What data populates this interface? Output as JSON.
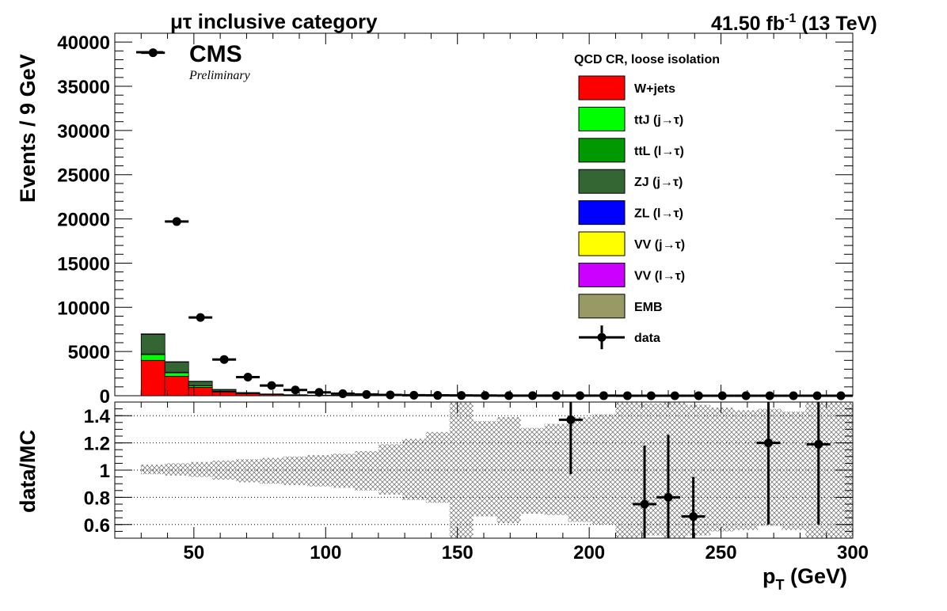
{
  "header": {
    "category_title": "μτ inclusive category",
    "lumi_value": "41.50 fb",
    "lumi_exponent": "-1",
    "energy": " (13 TeV)",
    "experiment": "CMS",
    "status": "Preliminary"
  },
  "chart_data": [
    {
      "type": "bar",
      "role": "stacked histogram with data points",
      "ylabel": "Events / 9 GeV",
      "ylim": [
        0,
        41000
      ],
      "yticks": [
        0,
        5000,
        10000,
        15000,
        20000,
        25000,
        30000,
        35000,
        40000
      ],
      "xlim": [
        20,
        300
      ],
      "legend_title": "QCD CR, loose isolation",
      "legend_position": "top-right",
      "bin_edges": [
        30,
        39,
        48,
        57,
        66,
        75,
        84,
        93,
        102,
        111,
        120,
        129,
        138,
        147,
        156,
        165,
        174,
        183,
        192,
        201,
        210,
        219,
        228,
        237,
        246,
        255,
        264,
        273,
        282,
        291,
        300
      ],
      "series": [
        {
          "name": "W+jets",
          "color": "#ff0000",
          "values": [
            4000,
            2200,
            950,
            430,
            230,
            130,
            70,
            40,
            25,
            15,
            10,
            6,
            4,
            3,
            2,
            1,
            1,
            1,
            1,
            0,
            0,
            0,
            0,
            0,
            0,
            0,
            0,
            0,
            0,
            0
          ]
        },
        {
          "name": "ttJ (j→τ)",
          "color": "#00ff00",
          "values": [
            650,
            400,
            160,
            60,
            25,
            12,
            6,
            3,
            2,
            1,
            1,
            0,
            0,
            0,
            0,
            0,
            0,
            0,
            0,
            0,
            0,
            0,
            0,
            0,
            0,
            0,
            0,
            0,
            0,
            0
          ]
        },
        {
          "name": "ttL (l→τ)",
          "color": "#009900",
          "values": [
            80,
            60,
            30,
            15,
            8,
            5,
            3,
            2,
            1,
            1,
            0,
            0,
            0,
            0,
            0,
            0,
            0,
            0,
            0,
            0,
            0,
            0,
            0,
            0,
            0,
            0,
            0,
            0,
            0,
            0
          ]
        },
        {
          "name": "ZJ (j→τ)",
          "color": "#336633",
          "values": [
            2200,
            1150,
            480,
            190,
            90,
            45,
            25,
            12,
            7,
            4,
            2,
            1,
            1,
            0,
            0,
            0,
            0,
            0,
            0,
            0,
            0,
            0,
            0,
            0,
            0,
            0,
            0,
            0,
            0,
            0
          ]
        },
        {
          "name": "ZL (l→τ)",
          "color": "#0000ff",
          "values": [
            0,
            0,
            0,
            0,
            0,
            0,
            0,
            0,
            0,
            0,
            0,
            0,
            0,
            0,
            0,
            0,
            0,
            0,
            0,
            0,
            0,
            0,
            0,
            0,
            0,
            0,
            0,
            0,
            0,
            0
          ]
        },
        {
          "name": "VV (j→τ)",
          "color": "#ffff00",
          "values": [
            20,
            12,
            5,
            3,
            2,
            1,
            1,
            0,
            0,
            0,
            0,
            0,
            0,
            0,
            0,
            0,
            0,
            0,
            0,
            0,
            0,
            0,
            0,
            0,
            0,
            0,
            0,
            0,
            0,
            0
          ]
        },
        {
          "name": "VV (l→τ)",
          "color": "#cc00ff",
          "values": [
            0,
            0,
            0,
            0,
            0,
            0,
            0,
            0,
            0,
            0,
            0,
            0,
            0,
            0,
            0,
            0,
            0,
            0,
            0,
            0,
            0,
            0,
            0,
            0,
            0,
            0,
            0,
            0,
            0,
            0
          ]
        },
        {
          "name": "EMB",
          "color": "#999966",
          "values": [
            50,
            28,
            15,
            8,
            5,
            3,
            2,
            1,
            1,
            0,
            0,
            0,
            0,
            0,
            0,
            0,
            0,
            0,
            0,
            0,
            0,
            0,
            0,
            0,
            0,
            0,
            0,
            0,
            0,
            0
          ]
        }
      ],
      "data_points": {
        "name": "data",
        "x": [
          34.5,
          43.5,
          52.5,
          61.5,
          70.5,
          79.5,
          88.5,
          97.5,
          106.5,
          115.5,
          124.5,
          133.5,
          142.5,
          151.5,
          160.5,
          169.5,
          178.5,
          187.5,
          196.5,
          205.5,
          214.5,
          223.5,
          232.5,
          241.5,
          250.5,
          259.5,
          268.5,
          277.5,
          286.5,
          295.5
        ],
        "y": [
          38800,
          19700,
          8850,
          4100,
          2100,
          1150,
          650,
          380,
          230,
          140,
          95,
          60,
          40,
          28,
          20,
          15,
          12,
          10,
          8,
          6,
          5,
          4,
          3,
          3,
          2,
          2,
          2,
          1,
          1,
          1
        ]
      }
    },
    {
      "type": "scatter",
      "role": "ratio panel",
      "ylabel": "data/MC",
      "xlabel": "p",
      "xlabel_subscript": "T",
      "xlabel_unit": " (GeV)",
      "ylim": [
        0.5,
        1.5
      ],
      "yticks": [
        "0.6",
        "0.8",
        "1",
        "1.2",
        "1.4"
      ],
      "xticks": [
        "50",
        "100",
        "150",
        "200",
        "250",
        "300"
      ],
      "xlim": [
        20,
        300
      ],
      "grid": "horizontal dotted at y ticks",
      "uncertainty_band": {
        "bin_edges": [
          30,
          39,
          48,
          57,
          66,
          75,
          84,
          93,
          102,
          111,
          120,
          129,
          138,
          147,
          156,
          165,
          174,
          183,
          192,
          201,
          210,
          219,
          228,
          237,
          246,
          255,
          264,
          273,
          282,
          291,
          300
        ],
        "low": [
          0.97,
          0.96,
          0.95,
          0.93,
          0.91,
          0.9,
          0.89,
          0.88,
          0.87,
          0.85,
          0.82,
          0.78,
          0.76,
          0.5,
          0.66,
          0.61,
          0.68,
          0.67,
          0.62,
          0.6,
          0.5,
          0.52,
          0.5,
          0.52,
          0.55,
          0.56,
          0.59,
          0.56,
          0.5,
          0.5
        ],
        "high": [
          1.04,
          1.05,
          1.06,
          1.07,
          1.08,
          1.09,
          1.1,
          1.11,
          1.12,
          1.14,
          1.19,
          1.23,
          1.28,
          1.5,
          1.36,
          1.39,
          1.31,
          1.34,
          1.39,
          1.41,
          1.5,
          1.49,
          1.5,
          1.48,
          1.46,
          1.44,
          1.45,
          1.43,
          1.5,
          1.5
        ]
      },
      "points": [
        {
          "x": 193,
          "y": 1.37,
          "ylo": 0.97,
          "yhi": 1.5,
          "xerr": 4.5
        },
        {
          "x": 221,
          "y": 0.75,
          "ylo": 0.5,
          "yhi": 1.18,
          "xerr": 4.5
        },
        {
          "x": 230,
          "y": 0.8,
          "ylo": 0.5,
          "yhi": 1.26,
          "xerr": 4.5
        },
        {
          "x": 239.5,
          "y": 0.66,
          "ylo": 0.5,
          "yhi": 0.95,
          "xerr": 4.5
        },
        {
          "x": 268,
          "y": 1.2,
          "ylo": 0.6,
          "yhi": 1.5,
          "xerr": 4.5
        },
        {
          "x": 287,
          "y": 1.19,
          "ylo": 0.6,
          "yhi": 1.5,
          "xerr": 4.5
        }
      ]
    }
  ]
}
